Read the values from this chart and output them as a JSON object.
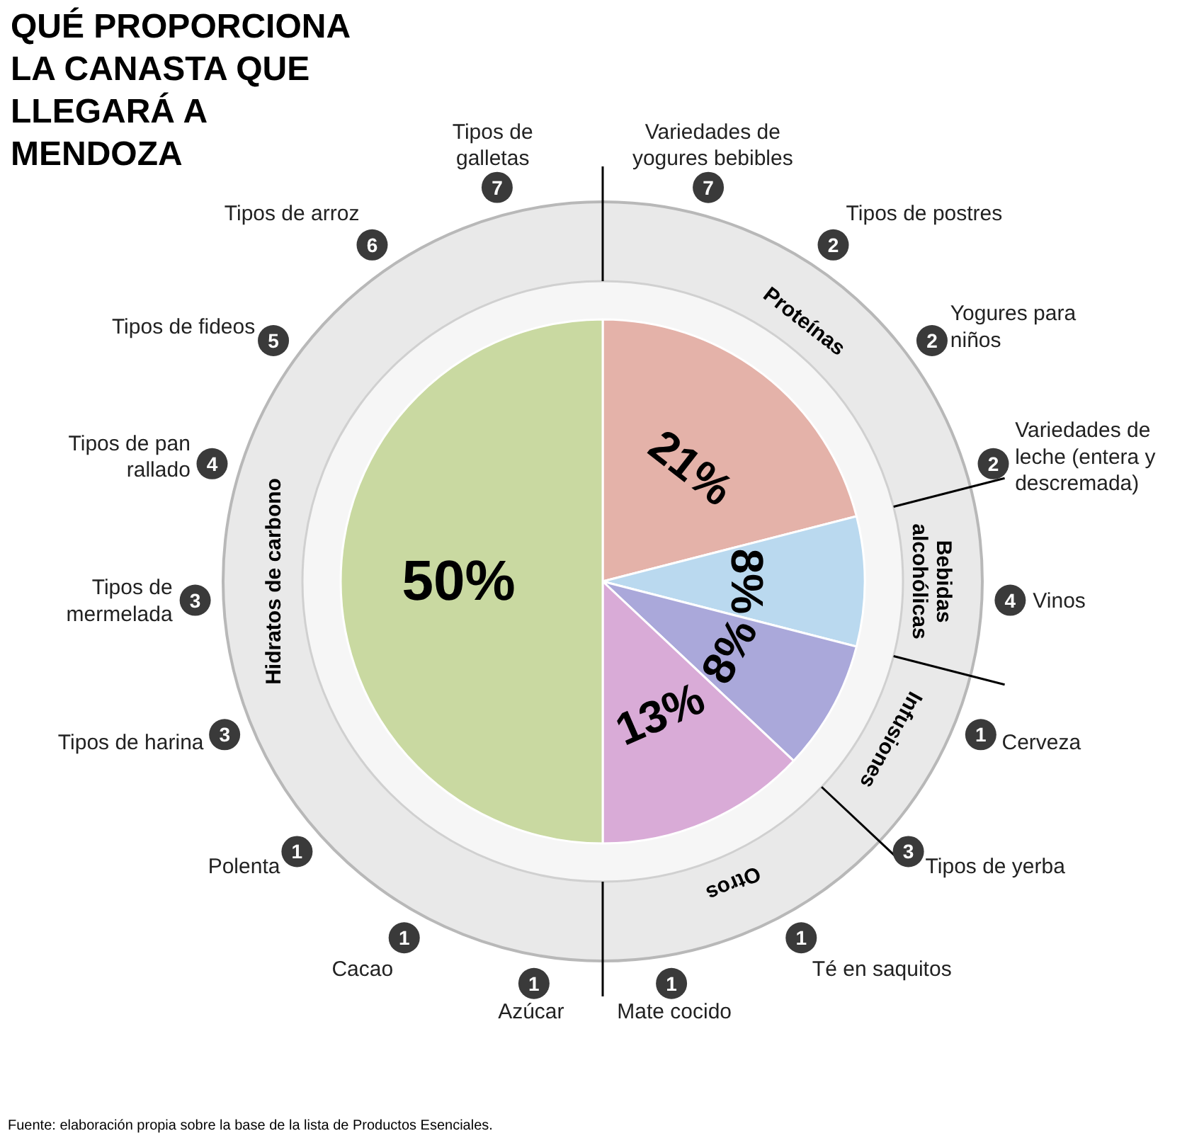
{
  "chart_data": {
    "type": "pie",
    "title": "QUÉ PROPORCIONA LA CANASTA QUE LLEGARÁ A MENDOZA",
    "categories": [
      "Proteínas",
      "Bebidas alcohólicas",
      "Infusiones",
      "Otros",
      "Hidratos de carbono"
    ],
    "values": [
      21,
      8,
      8,
      13,
      50
    ],
    "value_labels": [
      "21%",
      "8%",
      "8%",
      "13%",
      "50%"
    ],
    "colors": [
      "#e4b2a9",
      "#bad9ef",
      "#aaa8da",
      "#d9abd7",
      "#c9d9a1"
    ],
    "annotations": [
      "7",
      "Variedades de yogures bebibles",
      "2",
      "Tipos de postres",
      "2",
      "Yogures para niños",
      "2",
      "Variedades de leche (entera y descremada)",
      "4",
      "Vinos",
      "1",
      "Cerveza",
      "3",
      "Tipos de yerba",
      "1",
      "Té en saquitos",
      "1",
      "Mate cocido",
      "1",
      "Azúcar",
      "1",
      "Cacao",
      "1",
      "Polenta",
      "3",
      "Tipos de harina",
      "3",
      "Tipos de mermelada",
      "4",
      "Tipos de pan rallado",
      "5",
      "Tipos de fideos",
      "6",
      "Tipos de arroz",
      "7",
      "Tipos de galletas",
      "Fuente: elaboración propia sobre la base de la lista de Productos Esenciales."
    ]
  }
}
